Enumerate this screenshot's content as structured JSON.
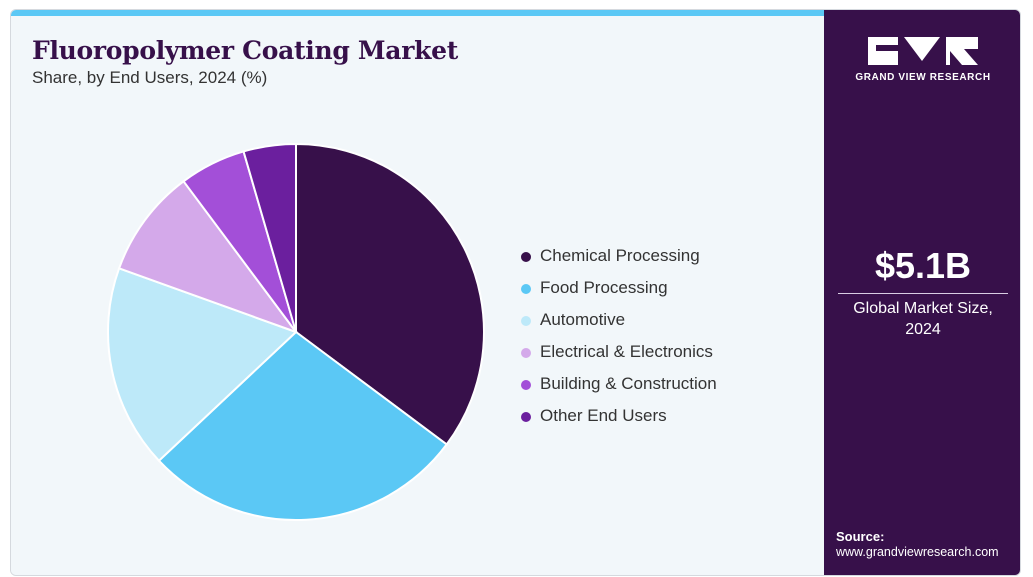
{
  "header": {
    "title": "Fluoropolymer Coating Market",
    "subtitle": "Share, by End Users, 2024 (%)"
  },
  "chart_data": {
    "type": "pie",
    "title": "Fluoropolymer Coating Market",
    "subtitle": "Share, by End Users, 2024 (%)",
    "categories": [
      "Chemical Processing",
      "Food Processing",
      "Automotive",
      "Electrical & Electronics",
      "Building & Construction",
      "Other End Users"
    ],
    "values": [
      35.2,
      27.8,
      17.5,
      9.3,
      5.7,
      4.5
    ],
    "colors": [
      "#37104a",
      "#5bc8f5",
      "#bde9f9",
      "#d4a9ea",
      "#a34fd8",
      "#6b1f9e"
    ],
    "legend_position": "right"
  },
  "sidebar": {
    "brand": "GRAND VIEW RESEARCH",
    "market_value": "$5.1B",
    "market_label_line1": "Global Market Size,",
    "market_label_line2": "2024",
    "source_label": "Source:",
    "source_url": "www.grandviewresearch.com"
  },
  "colors": {
    "brand": "#37104a",
    "accent": "#5bc8f5",
    "background": "#f2f7fa"
  }
}
